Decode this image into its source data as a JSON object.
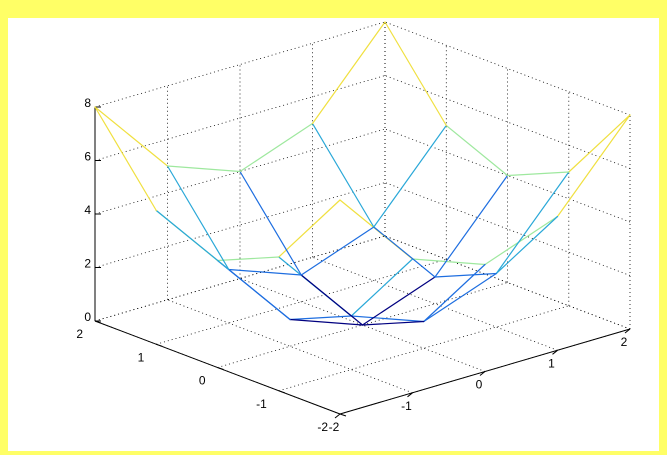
{
  "chart_data": {
    "type": "mesh",
    "title": "",
    "xlabel": "",
    "ylabel": "",
    "zlabel": "",
    "x": [
      -2,
      -1,
      0,
      1,
      2
    ],
    "y": [
      -2,
      -1,
      0,
      1,
      2
    ],
    "z": [
      [
        8,
        5,
        4,
        5,
        8
      ],
      [
        5,
        2,
        1,
        2,
        5
      ],
      [
        4,
        1,
        0,
        1,
        4
      ],
      [
        5,
        2,
        1,
        2,
        5
      ],
      [
        8,
        5,
        4,
        5,
        8
      ]
    ],
    "xlim": [
      -2,
      2
    ],
    "ylim": [
      -2,
      2
    ],
    "zlim": [
      0,
      8
    ],
    "x_ticks": [
      "-2",
      "-1",
      "0",
      "1",
      "2"
    ],
    "y_ticks": [
      "-2",
      "-1",
      "0",
      "1",
      "2"
    ],
    "z_ticks": [
      "0",
      "2",
      "4",
      "6",
      "8"
    ],
    "colormap": [
      "#000080",
      "#1e6ee0",
      "#2aa8d8",
      "#9ee89e",
      "#f0e040",
      "#f2d020"
    ],
    "grid": true
  }
}
